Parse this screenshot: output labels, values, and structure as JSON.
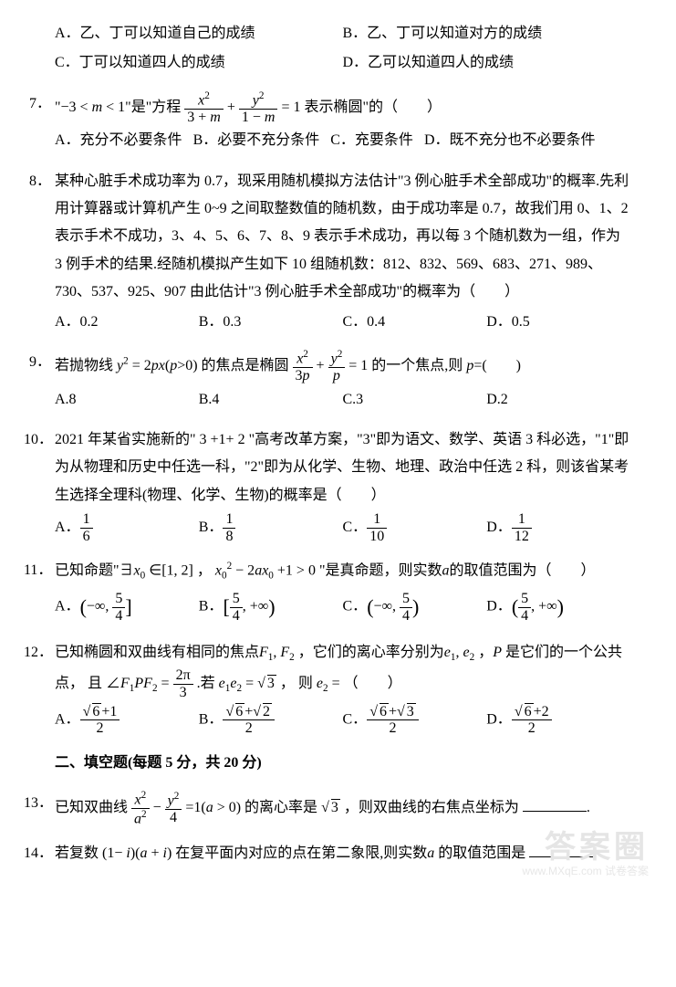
{
  "q6": {
    "A": "A．乙、丁可以知道自己的成绩",
    "B": "B．乙、丁可以知道对方的成绩",
    "C": "C．丁可以知道四人的成绩",
    "D": "D．乙可以知道四人的成绩"
  },
  "q7": {
    "num": "7．",
    "lead1": "\"−3 < ",
    "m": "m",
    "lead2": " < 1\"是\"方程 ",
    "f1n": "x",
    "f1d1": "3 + ",
    "f1d2": "m",
    "plus": " + ",
    "f2n": "y",
    "f2d1": "1 − ",
    "f2d2": "m",
    "eq": " = 1 表示椭圆\"的（　　）",
    "A": "A．充分不必要条件",
    "B": "B．必要不充分条件",
    "C": "C．充要条件",
    "D": "D．既不充分也不必要条件"
  },
  "q8": {
    "num": "8．",
    "body": "某种心脏手术成功率为 0.7，现采用随机模拟方法估计\"3 例心脏手术全部成功\"的概率.先利用计算器或计算机产生 0~9 之间取整数值的随机数，由于成功率是 0.7，故我们用 0、1、2 表示手术不成功，3、4、5、6、7、8、9 表示手术成功，再以每 3 个随机数为一组，作为 3 例手术的结果.经随机模拟产生如下 10 组随机数：812、832、569、683、271、989、730、537、925、907 由此估计\"3 例心脏手术全部成功\"的概率为（　　）",
    "A": "A．0.2",
    "B": "B．0.3",
    "C": "C．0.4",
    "D": "D．0.5"
  },
  "q9": {
    "num": "9．",
    "l1": "若抛物线 ",
    "y": "y",
    "eq1": " = 2",
    "p": "p",
    "x": "x",
    "par": "(",
    "pp": "p",
    "gt": ">0) 的焦点是椭圆 ",
    "f1n": "x",
    "f1d": "3",
    "f1dp": "p",
    "plus": " + ",
    "f2n": "y",
    "f2d": "p",
    "tail": " = 1 的一个焦点,则 ",
    "pv": "p",
    "eq2": "=(　　)",
    "A": "A.8",
    "B": "B.4",
    "C": "C.3",
    "D": "D.2"
  },
  "q10": {
    "num": "10．",
    "body": "2021 年某省实施新的\" 3 +1+ 2 \"高考改革方案，\"3\"即为语文、数学、英语 3 科必选，\"1\"即为从物理和历史中任选一科，\"2\"即为从化学、生物、地理、政治中任选 2 科，则该省某考生选择全理科(物理、化学、生物)的概率是（　　）",
    "A": "A．",
    "An": "1",
    "Ad": "6",
    "B": "B．",
    "Bn": "1",
    "Bd": "8",
    "C": "C．",
    "Cn": "1",
    "Cd": "10",
    "D": "D．",
    "Dn": "1",
    "Dd": "12"
  },
  "q11": {
    "num": "11．",
    "l1": "已知命题\"∃",
    "x0": "x",
    "sub0": "0",
    "in": " ∈[1, 2] ， ",
    "x02": "x",
    "sub02": "0",
    "minus": " − 2",
    "a": "a",
    "x03": "x",
    "sub03": "0",
    "tail": " +1 > 0 \"是真命题，则实数",
    "av": "a",
    "t2": "的取值范围为（　　）",
    "A": "A．",
    "Ab": "(−∞, ",
    "An": "5",
    "Ad": "4",
    "Ac": " ]",
    "B": "B．",
    "Bb": "[ ",
    "Bn": "5",
    "Bd": "4",
    "Bc": " , +∞)",
    "C": "C．",
    "Cb": "(−∞, ",
    "Cn": "5",
    "Cd": "4",
    "Cc": " )",
    "D": "D．",
    "Db": "( ",
    "Dn": "5",
    "Dd": "4",
    "Dc": " , +∞)"
  },
  "q12": {
    "num": "12．",
    "l1": "已知椭圆和双曲线有相同的焦点",
    "F1": "F",
    "s1": "1",
    "comma": ", ",
    "F2": "F",
    "s2": "2",
    "l2": " ，它们的离心率分别为",
    "e1": "e",
    "se1": "1",
    "c2": ", ",
    "e2": "e",
    "se2": "2",
    "l3": " ，",
    "P": "P",
    "l4": " 是它们的一个公共点， 且 ∠",
    "F1b": "F",
    "s1b": "1",
    "Pb": "P",
    "F2b": "F",
    "s2b": "2",
    "eq": " = ",
    "angn": "2π",
    "angd": "3",
    "dot": " .若 ",
    "e1b": "e",
    "se1b": "1",
    "e2b": "e",
    "se2b": "2",
    "eq2": " = ",
    "sq3": "3",
    "then": " ， 则 ",
    "e2c": "e",
    "se2c": "2",
    "eq3": " = （　　）",
    "A": "A．",
    "An1": "6",
    "Aplus": "+1",
    "Ad": "2",
    "B": "B．",
    "Bn1": "6",
    "Bplus": "+",
    "Bn2": "2",
    "Bd": "2",
    "C": "C．",
    "Cn1": "6",
    "Cplus": "+",
    "Cn2": "3",
    "Cd": "2",
    "D": "D．",
    "Dn1": "6",
    "Dplus": "+2",
    "Dd": "2"
  },
  "sec2": "二、填空题(每题 5 分，共 20 分)",
  "q13": {
    "num": "13．",
    "l1": "已知双曲线 ",
    "f1n": "x",
    "f1d": "a",
    "minus": " − ",
    "f2n": "y",
    "f2d": "4",
    "mid": " =1(",
    "a": "a",
    "gt": " > 0) 的离心率是 ",
    "sq3": "3",
    "tail": " ，则双曲线的右焦点坐标为 ",
    "end": "."
  },
  "q14": {
    "num": "14．",
    "l1": "若复数 (1− ",
    "i1": "i",
    "l2": ")(",
    "a": "a",
    "plus": " + ",
    "i2": "i",
    "l3": ") 在复平面内对应的点在第二象限,则实数",
    "av": "a",
    "l4": " 的取值范围是 ",
    "end": "."
  },
  "watermark": "答案圈",
  "watermark2": "www.MXqE.com 试卷答案"
}
